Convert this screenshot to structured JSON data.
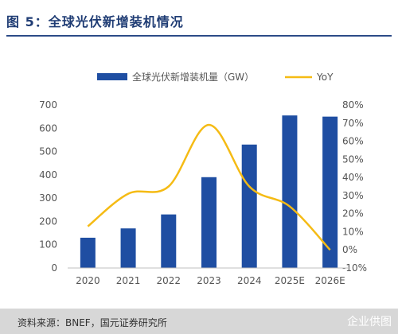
{
  "title": "图 5：全球光伏新增装机情况",
  "footer": {
    "source": "资料来源：BNEF，国元证券研究所",
    "watermark": "企业供图"
  },
  "colors": {
    "bar": "#1f4ea2",
    "line": "#f5bb14",
    "title": "#1f3c74",
    "footer_bg": "#d7d7d7"
  },
  "chart_data": {
    "type": "bar",
    "categories": [
      "2020",
      "2021",
      "2022",
      "2023",
      "2024",
      "2025E",
      "2026E"
    ],
    "series": [
      {
        "name": "全球光伏新增装机量（GW）",
        "type": "bar",
        "axis": "left",
        "values": [
          130,
          170,
          230,
          390,
          530,
          655,
          650
        ]
      },
      {
        "name": "YoY",
        "type": "line",
        "axis": "right",
        "values": [
          13,
          31,
          35,
          69,
          35,
          24,
          0
        ]
      }
    ],
    "ylim": [
      0,
      700
    ],
    "y_ticks": [
      "0",
      "100",
      "200",
      "300",
      "400",
      "500",
      "600",
      "700"
    ],
    "y2lim": [
      -10,
      80
    ],
    "y2_ticks": [
      "-10%",
      "0%",
      "10%",
      "20%",
      "30%",
      "40%",
      "50%",
      "60%",
      "70%",
      "80%"
    ],
    "legend_position": "top",
    "grid": false
  }
}
